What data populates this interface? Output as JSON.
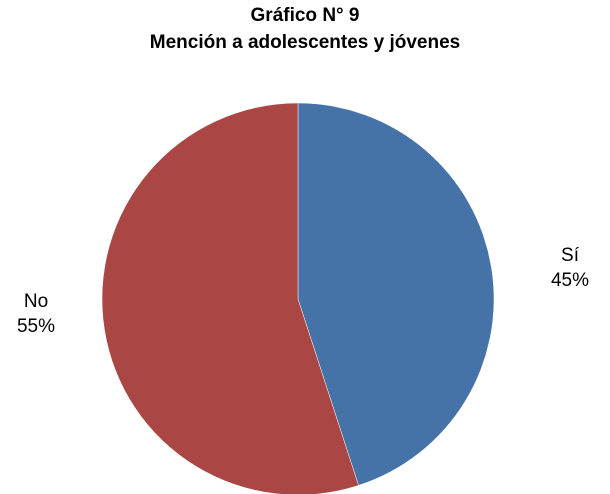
{
  "chart_data": {
    "type": "pie",
    "title": "Gráfico N° 9",
    "subtitle": "Mención a adolescentes y jóvenes",
    "slices": [
      {
        "label": "Sí",
        "value": 45,
        "value_label": "45%",
        "color": "#4572A7"
      },
      {
        "label": "No",
        "value": 55,
        "value_label": "55%",
        "color": "#AA4643"
      }
    ],
    "start": "12 o'clock",
    "direction": "clockwise",
    "legend": "none"
  }
}
